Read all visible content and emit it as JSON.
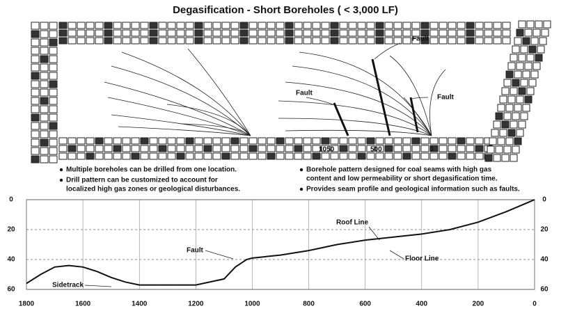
{
  "title": "Degasification - Short Boreholes ( < 3,000 LF)",
  "plan": {
    "labels": [
      "Fault",
      "Fault",
      "Fault",
      "1050",
      "500",
      "0"
    ]
  },
  "bullets": [
    [
      "Multiple boreholes can be drilled from one location."
    ],
    [
      "Drill pattern can be customized to account for",
      "localized high gas zones or geological disturbances."
    ],
    [
      "Borehole pattern designed for coal seams with high gas",
      "content and low permeability or short degasification time."
    ],
    [
      "Provides seam profile and geological information such as faults."
    ]
  ],
  "profile": {
    "xlim": [
      1800,
      0
    ],
    "ylim": [
      0,
      60
    ],
    "xticks": [
      1800,
      1600,
      1400,
      1200,
      1000,
      800,
      600,
      400,
      200,
      0
    ],
    "yticks": [
      0,
      20,
      40,
      60
    ],
    "annotations": [
      "Roof Line",
      "Floor Line",
      "Fault",
      "Sidetrack"
    ],
    "x": [
      1800,
      1750,
      1700,
      1650,
      1600,
      1550,
      1500,
      1450,
      1400,
      1300,
      1200,
      1100,
      1060,
      1020,
      1000,
      900,
      800,
      700,
      600,
      500,
      400,
      300,
      200,
      100,
      0
    ],
    "y": [
      56,
      50,
      45,
      44,
      45,
      48,
      52,
      55,
      57,
      57,
      57,
      53,
      45,
      40,
      39,
      37,
      34,
      30,
      27,
      25,
      23,
      20,
      15,
      8,
      0
    ]
  }
}
